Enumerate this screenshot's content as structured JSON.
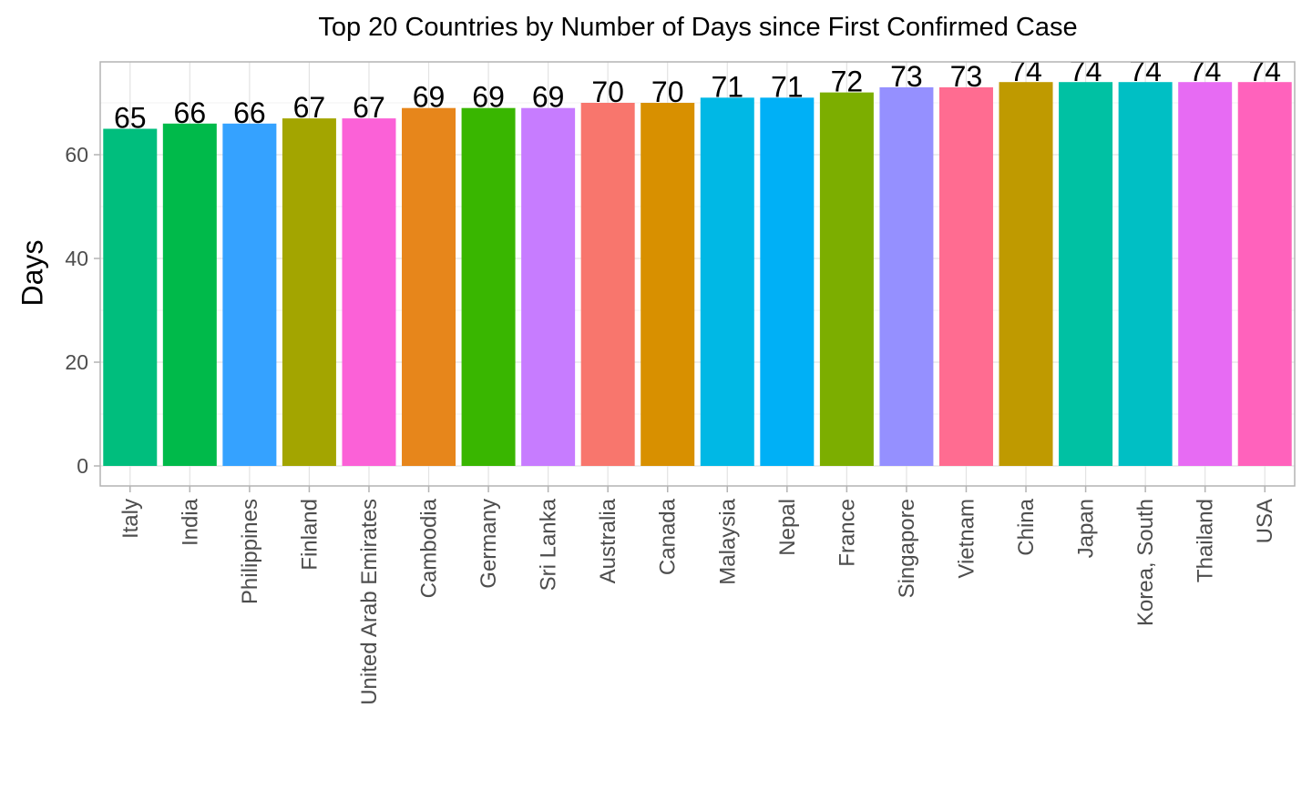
{
  "chart_data": {
    "type": "bar",
    "title": "Top 20 Countries by Number of Days since First Confirmed Case",
    "xlabel": "",
    "ylabel": "Days",
    "ylim": [
      0,
      74
    ],
    "yticks": [
      0,
      20,
      40,
      60
    ],
    "grid": true,
    "legend": "none",
    "categories": [
      "Italy",
      "India",
      "Philippines",
      "Finland",
      "United Arab Emirates",
      "Cambodia",
      "Germany",
      "Sri Lanka",
      "Australia",
      "Canada",
      "Malaysia",
      "Nepal",
      "France",
      "Singapore",
      "Vietnam",
      "China",
      "Japan",
      "Korea, South",
      "Thailand",
      "USA"
    ],
    "values": [
      65,
      66,
      66,
      67,
      67,
      69,
      69,
      69,
      70,
      70,
      71,
      71,
      72,
      73,
      73,
      74,
      74,
      74,
      74,
      74
    ],
    "colors": [
      "#00BE7D",
      "#00BA4A",
      "#35A2FF",
      "#A3A500",
      "#FB61D7",
      "#E7861B",
      "#39B600",
      "#C77CFF",
      "#F8766D",
      "#D89000",
      "#00B8E5",
      "#00B0F6",
      "#7CAE00",
      "#9590FF",
      "#FF6C91",
      "#BF9A00",
      "#00C1A3",
      "#00BFC4",
      "#E76BF3",
      "#FF62BC"
    ]
  }
}
